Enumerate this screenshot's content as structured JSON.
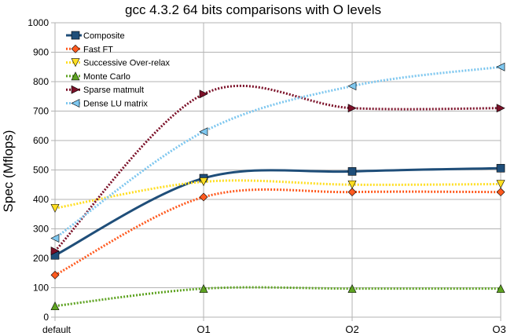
{
  "chart_data": {
    "type": "line",
    "title": "gcc 4.3.2 64 bits comparisons with O levels",
    "xlabel": "",
    "ylabel": "Spec (Mflops)",
    "categories": [
      "default",
      "O1",
      "O2",
      "O3"
    ],
    "ylim": [
      0,
      1000
    ],
    "yticks": [
      0,
      100,
      200,
      300,
      400,
      500,
      600,
      700,
      800,
      900,
      1000
    ],
    "grid": "horizontal",
    "smooth": true,
    "legend_position": "top-left",
    "series": [
      {
        "name": "Composite",
        "values": [
          210,
          472,
          495,
          506
        ],
        "color": "#1f4e79",
        "marker": "square",
        "dash": ""
      },
      {
        "name": "Fast FT",
        "values": [
          143,
          408,
          425,
          425
        ],
        "color": "#ff5a1f",
        "marker": "diamond",
        "dash": "2,2"
      },
      {
        "name": "Successive Over-relax",
        "values": [
          370,
          460,
          450,
          452
        ],
        "color": "#ffde21",
        "marker": "triangle-down",
        "dash": "2,2"
      },
      {
        "name": "Monte Carlo",
        "values": [
          38,
          97,
          97,
          97
        ],
        "color": "#5ea321",
        "marker": "triangle-up",
        "dash": "2,2"
      },
      {
        "name": "Sparse matmult",
        "values": [
          225,
          758,
          710,
          710
        ],
        "color": "#7b1028",
        "marker": "triangle-right",
        "dash": "2,2"
      },
      {
        "name": "Dense LU matrix",
        "values": [
          268,
          630,
          785,
          850
        ],
        "color": "#7ec7ef",
        "marker": "triangle-left",
        "dash": "2,2"
      }
    ]
  }
}
